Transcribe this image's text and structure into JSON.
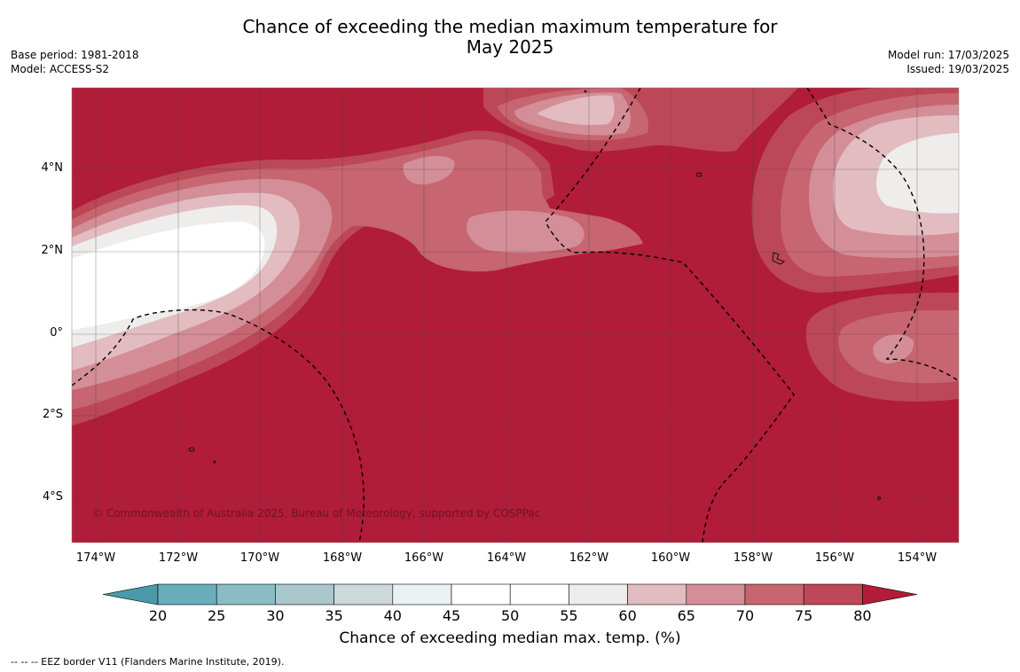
{
  "title_line1": "Chance of exceeding the median maximum temperature for",
  "title_line2": "May 2025",
  "meta_left": [
    "Base period: 1981-2018",
    "Model: ACCESS-S2"
  ],
  "meta_right": [
    "Model run: 17/03/2025",
    "Issued: 19/03/2025"
  ],
  "lat_labels": [
    "4°N",
    "2°N",
    "0°",
    "2°S",
    "4°S"
  ],
  "lon_labels": [
    "174°W",
    "172°W",
    "170°W",
    "168°W",
    "166°W",
    "164°W",
    "162°W",
    "160°W",
    "158°W",
    "156°W",
    "154°W"
  ],
  "copyright": "© Commonwealth of Australia 2025, Bureau of Meteorology, supported by COSPPac",
  "colorbar": {
    "ticks": [
      "20",
      "25",
      "30",
      "35",
      "40",
      "45",
      "50",
      "55",
      "60",
      "65",
      "70",
      "75",
      "80"
    ],
    "colors": [
      "#4a9aaa",
      "#6aaebc",
      "#8bbcc6",
      "#aac7cc",
      "#cdd8da",
      "#eaf1f2",
      "#ffffff",
      "#ffffff",
      "#efedec",
      "#e2bcc1",
      "#d38e98",
      "#c76570",
      "#bc4757",
      "#b11c38"
    ],
    "label": "Chance of exceeding median max. temp. (%)"
  },
  "footer": "--  --  -- EEZ border V11 (Flanders Marine Institute, 2019)."
}
